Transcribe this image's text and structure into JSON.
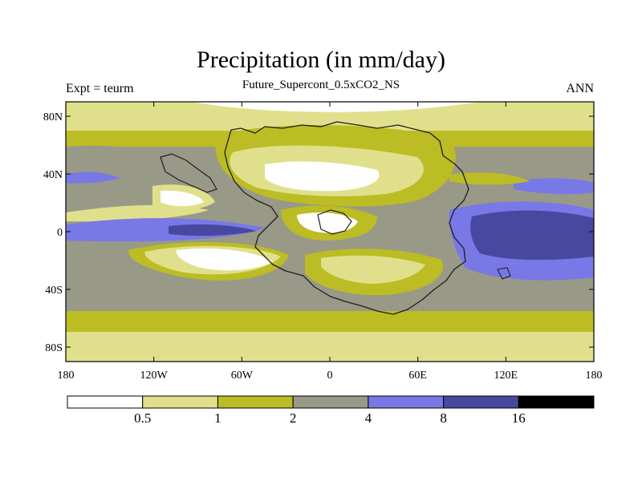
{
  "title": "Precipitation (in mm/day)",
  "subtitle": "Future_Supercont_0.5xCO2_NS",
  "left_label": "Expt = teurm",
  "right_label": "ANN",
  "axes": {
    "lon_ticks": [
      "180",
      "120W",
      "60W",
      "0",
      "60E",
      "120E",
      "180"
    ],
    "lat_ticks": [
      "80N",
      "40N",
      "0",
      "40S",
      "80S"
    ]
  },
  "colorbar": {
    "levels": [
      "0.5",
      "1",
      "2",
      "4",
      "8",
      "16"
    ],
    "colors": [
      "#ffffff",
      "#e0e08c",
      "#bcbc24",
      "#999988",
      "#7878e6",
      "#4848a0",
      "#000000"
    ]
  }
}
